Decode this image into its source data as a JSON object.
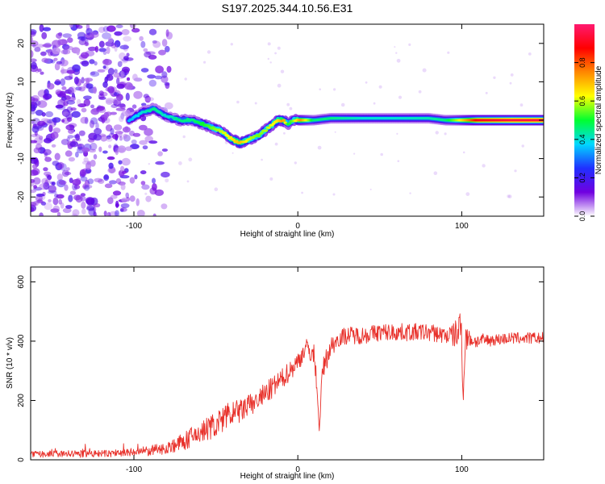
{
  "title": "S197.2025.344.10.56.E31",
  "chart_data": [
    {
      "type": "heatmap",
      "xlabel": "Height of straight line (km)",
      "ylabel": "Frequency (Hz)",
      "xlim": [
        -163,
        150
      ],
      "ylim": [
        -25,
        25
      ],
      "xticks": [
        -100,
        0,
        100
      ],
      "yticks": [
        -20,
        -10,
        0,
        10,
        20
      ],
      "colorbar": {
        "label": "Normalized spectral amplitude",
        "range": [
          0,
          1
        ],
        "ticks": [
          0,
          0.2,
          0.4,
          0.6,
          0.8
        ],
        "tick_labels": [
          "0.0",
          "0.2",
          "0.4",
          "0.6",
          "0.8"
        ],
        "colors": [
          "#ffffff",
          "#7000e0",
          "#2030ff",
          "#00d8ff",
          "#00ff30",
          "#ffff00",
          "#ff8800",
          "#ff0000",
          "#ff1a70"
        ]
      },
      "ridge": {
        "x": [
          -103,
          -95,
          -88,
          -80,
          -72,
          -65,
          -58,
          -52,
          -46,
          -40,
          -35,
          -30,
          -24,
          -18,
          -12,
          -9,
          -6,
          -3,
          2,
          10,
          20,
          40,
          60,
          80,
          90,
          98,
          110,
          130,
          150
        ],
        "freq": [
          0,
          2,
          3,
          1,
          0,
          0,
          -1,
          -2,
          -3,
          -5,
          -6,
          -5,
          -4,
          -2,
          0,
          0,
          -1,
          0,
          0,
          0,
          0.5,
          0.5,
          0.5,
          0.5,
          0,
          0,
          0,
          0,
          0
        ],
        "amplitude": [
          0.35,
          0.4,
          0.45,
          0.4,
          0.45,
          0.45,
          0.5,
          0.55,
          0.6,
          0.65,
          0.7,
          0.6,
          0.55,
          0.6,
          0.65,
          0.75,
          0.5,
          0.55,
          0.75,
          0.45,
          0.45,
          0.4,
          0.4,
          0.42,
          0.45,
          0.6,
          0.9,
          0.95,
          0.95
        ]
      },
      "noise_region": {
        "x": [
          -163,
          -103
        ],
        "freq": [
          -25,
          25
        ],
        "amplitude": [
          0.05,
          0.2
        ]
      }
    },
    {
      "type": "line",
      "xlabel": "Height of straight line (km)",
      "ylabel": "SNR (10 * v/v)",
      "xlim": [
        -163,
        150
      ],
      "ylim": [
        0,
        650
      ],
      "xticks": [
        -100,
        0,
        100
      ],
      "yticks": [
        0,
        200,
        400,
        600
      ],
      "color": "#e8302a",
      "series": [
        {
          "name": "SNR",
          "x": [
            -163,
            -140,
            -120,
            -100,
            -90,
            -80,
            -70,
            -60,
            -50,
            -40,
            -30,
            -20,
            -10,
            0,
            5,
            10,
            12,
            13,
            15,
            20,
            25,
            30,
            40,
            50,
            60,
            70,
            80,
            90,
            95,
            98,
            100,
            101,
            102,
            104,
            108,
            120,
            130,
            140,
            150
          ],
          "values": [
            18,
            20,
            20,
            25,
            30,
            40,
            60,
            90,
            120,
            150,
            180,
            220,
            270,
            330,
            380,
            350,
            230,
            90,
            300,
            380,
            410,
            420,
            420,
            430,
            430,
            430,
            430,
            420,
            420,
            430,
            440,
            200,
            410,
            410,
            400,
            405,
            410,
            410,
            410
          ],
          "noise_amp": [
            10,
            12,
            12,
            15,
            18,
            20,
            30,
            40,
            45,
            45,
            40,
            40,
            35,
            35,
            30,
            40,
            30,
            10,
            40,
            35,
            30,
            30,
            30,
            30,
            30,
            30,
            30,
            30,
            40,
            70,
            120,
            20,
            60,
            30,
            25,
            20,
            20,
            20,
            20
          ]
        }
      ]
    }
  ]
}
